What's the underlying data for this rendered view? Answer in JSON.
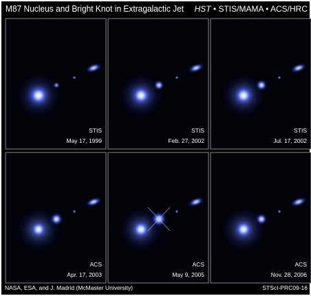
{
  "header": {
    "title": "M87 Nucleus and Bright Knot in Extragalactic Jet",
    "mission": "HST",
    "instruments": "• STIS/MAMA • ACS/HRC"
  },
  "panels": [
    {
      "instrument": "STIS",
      "date": "May 17, 1999"
    },
    {
      "instrument": "STIS",
      "date": "Feb. 27, 2002"
    },
    {
      "instrument": "STIS",
      "date": "Jul. 17, 2002"
    },
    {
      "instrument": "ACS",
      "date": "Apr. 17, 2003"
    },
    {
      "instrument": "ACS",
      "date": "May 9, 2005"
    },
    {
      "instrument": "ACS",
      "date": "Nov. 28, 2006"
    }
  ],
  "footer": {
    "credit": "NASA, ESA, and J. Madrid (McMaster University)",
    "id": "STScI-PRC09-16"
  }
}
